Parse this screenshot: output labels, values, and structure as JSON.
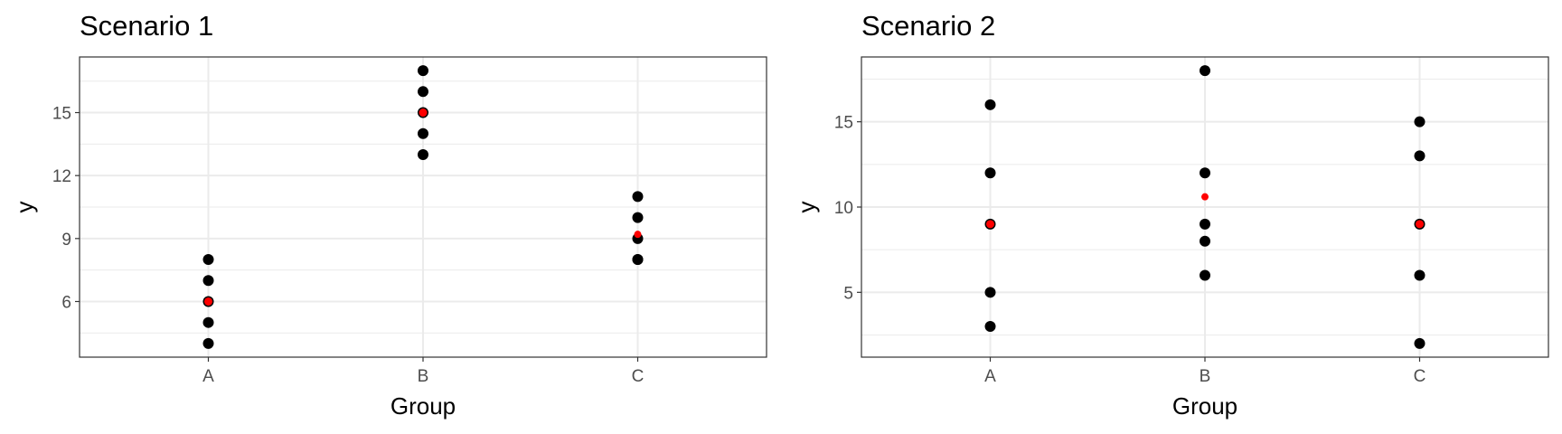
{
  "chart_data": [
    {
      "type": "scatter",
      "title": "Scenario 1",
      "xlabel": "Group",
      "ylabel": "y",
      "categories": [
        "A",
        "B",
        "C"
      ],
      "y_ticks": [
        6,
        9,
        12,
        15
      ],
      "ylim": [
        3.35,
        17.65
      ],
      "grid": true,
      "series": [
        {
          "points": [
            {
              "x": "A",
              "y": 4
            },
            {
              "x": "A",
              "y": 5
            },
            {
              "x": "A",
              "y": 6
            },
            {
              "x": "A",
              "y": 7
            },
            {
              "x": "A",
              "y": 8
            },
            {
              "x": "B",
              "y": 13
            },
            {
              "x": "B",
              "y": 14
            },
            {
              "x": "B",
              "y": 15
            },
            {
              "x": "B",
              "y": 16
            },
            {
              "x": "B",
              "y": 17
            },
            {
              "x": "C",
              "y": 8
            },
            {
              "x": "C",
              "y": 8
            },
            {
              "x": "C",
              "y": 9
            },
            {
              "x": "C",
              "y": 10
            },
            {
              "x": "C",
              "y": 11
            }
          ],
          "color": "#000000"
        },
        {
          "points": [
            {
              "x": "A",
              "y": 6
            },
            {
              "x": "B",
              "y": 15
            },
            {
              "x": "C",
              "y": 9.2
            }
          ],
          "color": "#ff0000"
        }
      ]
    },
    {
      "type": "scatter",
      "title": "Scenario 2",
      "xlabel": "Group",
      "ylabel": "y",
      "categories": [
        "A",
        "B",
        "C"
      ],
      "y_ticks": [
        5,
        10,
        15
      ],
      "ylim": [
        1.2,
        18.8
      ],
      "grid": true,
      "series": [
        {
          "points": [
            {
              "x": "A",
              "y": 3
            },
            {
              "x": "A",
              "y": 5
            },
            {
              "x": "A",
              "y": 9
            },
            {
              "x": "A",
              "y": 12
            },
            {
              "x": "A",
              "y": 16
            },
            {
              "x": "B",
              "y": 6
            },
            {
              "x": "B",
              "y": 8
            },
            {
              "x": "B",
              "y": 9
            },
            {
              "x": "B",
              "y": 12
            },
            {
              "x": "B",
              "y": 18
            },
            {
              "x": "C",
              "y": 2
            },
            {
              "x": "C",
              "y": 6
            },
            {
              "x": "C",
              "y": 9
            },
            {
              "x": "C",
              "y": 13
            },
            {
              "x": "C",
              "y": 15
            }
          ],
          "color": "#000000"
        },
        {
          "points": [
            {
              "x": "A",
              "y": 9
            },
            {
              "x": "B",
              "y": 10.6
            },
            {
              "x": "C",
              "y": 9
            }
          ],
          "color": "#ff0000"
        }
      ]
    }
  ]
}
